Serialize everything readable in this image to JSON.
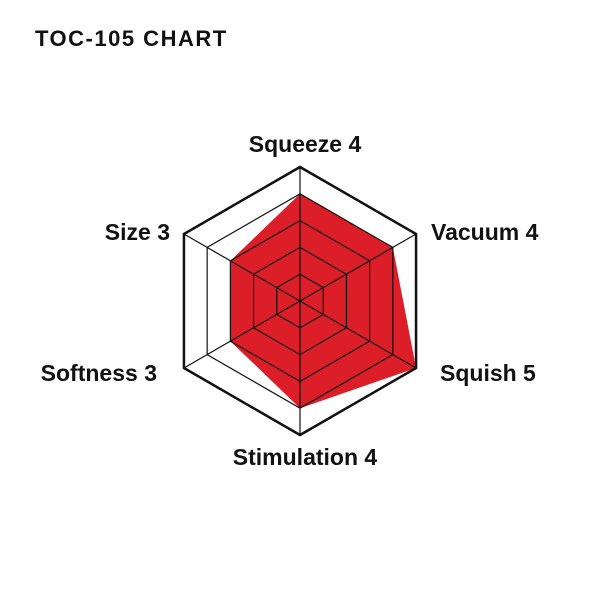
{
  "page": {
    "title": "TOC-105 CHART"
  },
  "chart_data": {
    "type": "radar",
    "title": "TOC-105 CHART",
    "max_value": 5,
    "rings": 5,
    "axes": [
      {
        "label": "Squeeze",
        "value": 4,
        "display": "Squeeze 4"
      },
      {
        "label": "Vacuum",
        "value": 4,
        "display": "Vacuum 4"
      },
      {
        "label": "Squish",
        "value": 5,
        "display": "Squish 5"
      },
      {
        "label": "Stimulation",
        "value": 4,
        "display": "Stimulation 4"
      },
      {
        "label": "Softness",
        "value": 3,
        "display": "Softness 3"
      },
      {
        "label": "Size",
        "value": 3,
        "display": "Size 3"
      }
    ],
    "layout_hints": {
      "axis_order": "clockwise-from-top",
      "grid": "on",
      "grid_on_top_of_fill": true,
      "legend": "none"
    },
    "colors": {
      "fill": "#dc1e28",
      "grid": "#111111",
      "text": "#111111",
      "background": "#ffffff"
    }
  }
}
